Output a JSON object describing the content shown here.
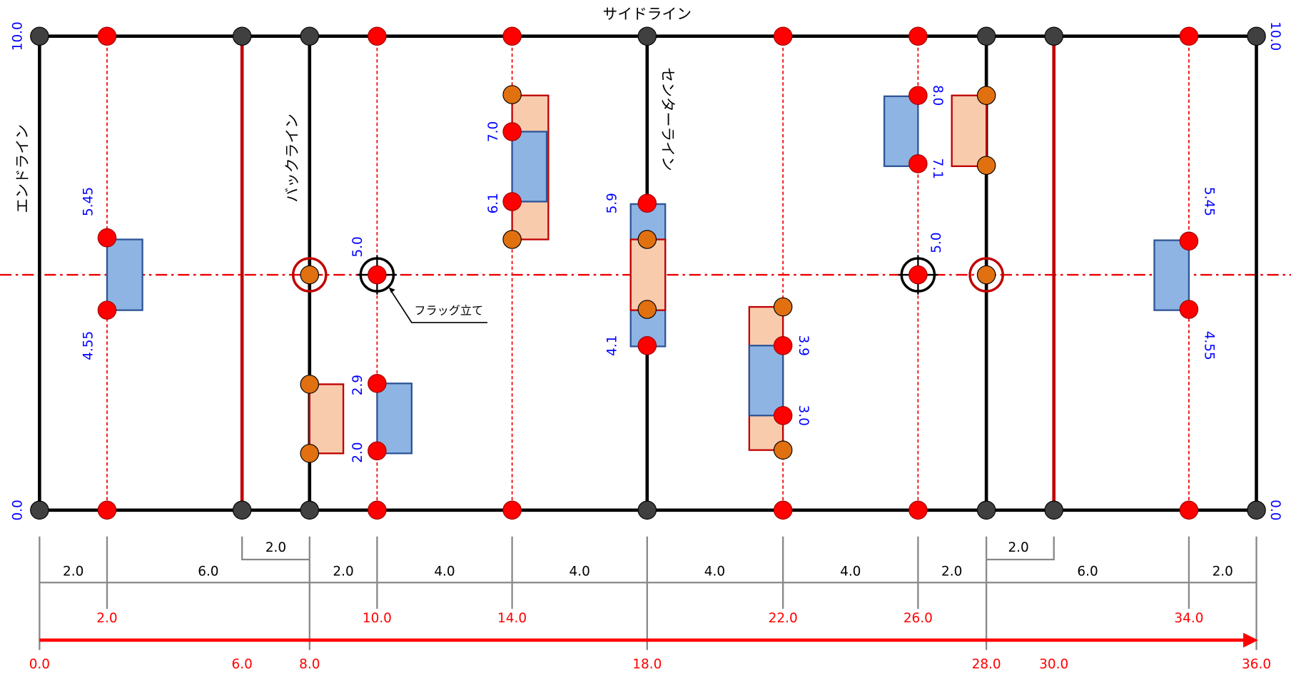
{
  "titles": {
    "sideline": "サイドライン",
    "endline": "エンドライン",
    "backline": "バックライン",
    "centerline": "センターライン",
    "flag": "フラッグ立て"
  },
  "y_labels": {
    "left_top": "10.0",
    "left_bottom": "0.0",
    "right_top": "10.0",
    "right_bottom": "0.0"
  },
  "heights": [
    "5.45",
    "4.55",
    "5.0",
    "2.9",
    "2.0",
    "7.0",
    "6.1",
    "5.9",
    "4.1",
    "3.9",
    "3.0",
    "8.0",
    "7.1",
    "5.0",
    "5.45",
    "4.55"
  ],
  "segments": [
    "2.0",
    "6.0",
    "2.0",
    "4.0",
    "4.0",
    "4.0",
    "4.0",
    "2.0",
    "6.0",
    "2.0"
  ],
  "offsets": [
    "2.0",
    "2.0"
  ],
  "marker_positions": [
    "2.0",
    "10.0",
    "14.0",
    "22.0",
    "26.0",
    "34.0"
  ],
  "line_positions": [
    "0.0",
    "6.0",
    "8.0",
    "18.0",
    "28.0",
    "30.0",
    "36.0"
  ]
}
